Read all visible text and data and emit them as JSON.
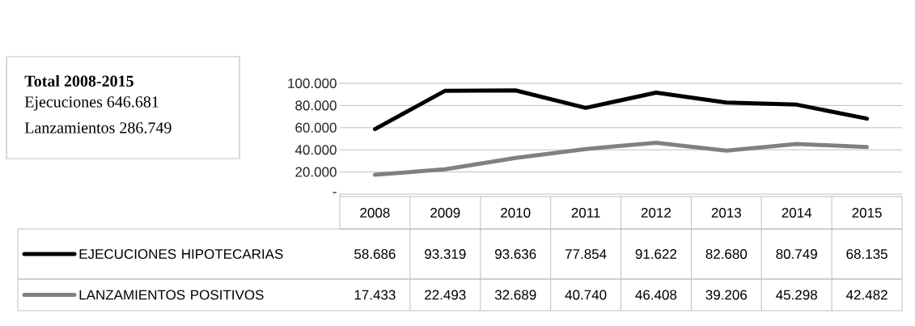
{
  "chart_data": {
    "type": "line",
    "categories": [
      "2008",
      "2009",
      "2010",
      "2011",
      "2012",
      "2013",
      "2014",
      "2015"
    ],
    "series": [
      {
        "name": "EJECUCIONES HIPOTECARIAS",
        "color": "#000000",
        "values": [
          58686,
          93319,
          93636,
          77854,
          91622,
          82680,
          80749,
          68135
        ],
        "value_labels": [
          "58.686",
          "93.319",
          "93.636",
          "77.854",
          "91.622",
          "82.680",
          "80.749",
          "68.135"
        ]
      },
      {
        "name": "LANZAMIENTOS POSITIVOS",
        "color": "#808080",
        "values": [
          17433,
          22493,
          32689,
          40740,
          46408,
          39206,
          45298,
          42482
        ],
        "value_labels": [
          "17.433",
          "22.493",
          "32.689",
          "40.740",
          "46.408",
          "39.206",
          "45.298",
          "42.482"
        ]
      }
    ],
    "ylim": [
      0,
      100000
    ],
    "yticks": [
      {
        "value": 0,
        "label": "-"
      },
      {
        "value": 20000,
        "label": "20.000"
      },
      {
        "value": 40000,
        "label": "40.000"
      },
      {
        "value": 60000,
        "label": "60.000"
      },
      {
        "value": 80000,
        "label": "80.000"
      },
      {
        "value": 100000,
        "label": "100.000"
      }
    ],
    "grid": "y",
    "legend": "bottom",
    "marker": "none",
    "line_style": "solid",
    "annotations": [
      "Total 2008-2015",
      "Ejecuciones    646.681",
      "Lanzamientos 286.749"
    ]
  }
}
